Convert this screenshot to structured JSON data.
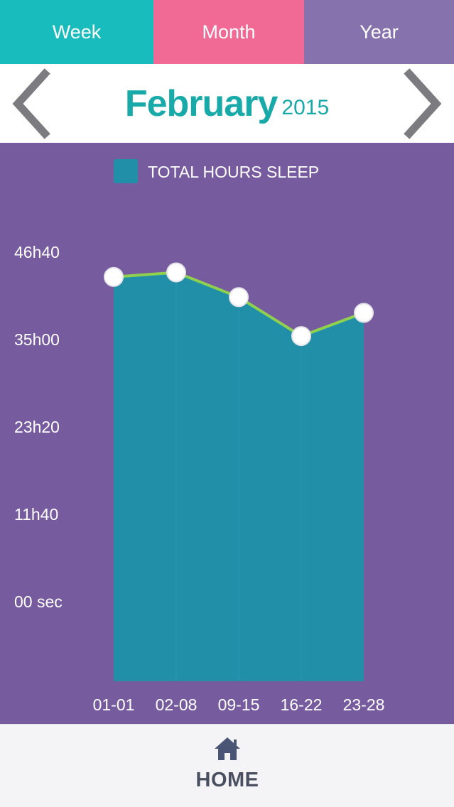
{
  "tabs": [
    {
      "label": "Week"
    },
    {
      "label": "Month"
    },
    {
      "label": "Year"
    }
  ],
  "header": {
    "month": "February",
    "year": "2015"
  },
  "colors": {
    "week_tab": "#18bcbc",
    "month_tab": "#f06a95",
    "year_tab": "#8673ae",
    "chart_bg": "#775b9f",
    "area_fill": "#218fa8",
    "line": "#8fd14f",
    "title": "#18aaa8"
  },
  "chart_data": {
    "type": "area",
    "legend": "TOTAL HOURS SLEEP",
    "categories": [
      "01-01",
      "02-08",
      "09-15",
      "16-22",
      "23-28"
    ],
    "values": [
      54.0,
      54.6,
      51.3,
      46.1,
      49.2
    ],
    "y_unit": "hours",
    "ylim": [
      0,
      58
    ],
    "y_ticks": [
      {
        "value": 0,
        "label": "00 sec"
      },
      {
        "value": 11.6667,
        "label": "11h40"
      },
      {
        "value": 23.3333,
        "label": "23h20"
      },
      {
        "value": 35.0,
        "label": "35h00"
      },
      {
        "value": 46.6667,
        "label": "46h40"
      }
    ],
    "grid": false,
    "legend_position": "top"
  },
  "bottom_nav": {
    "home_label": "HOME",
    "home_icon": "home-icon"
  }
}
